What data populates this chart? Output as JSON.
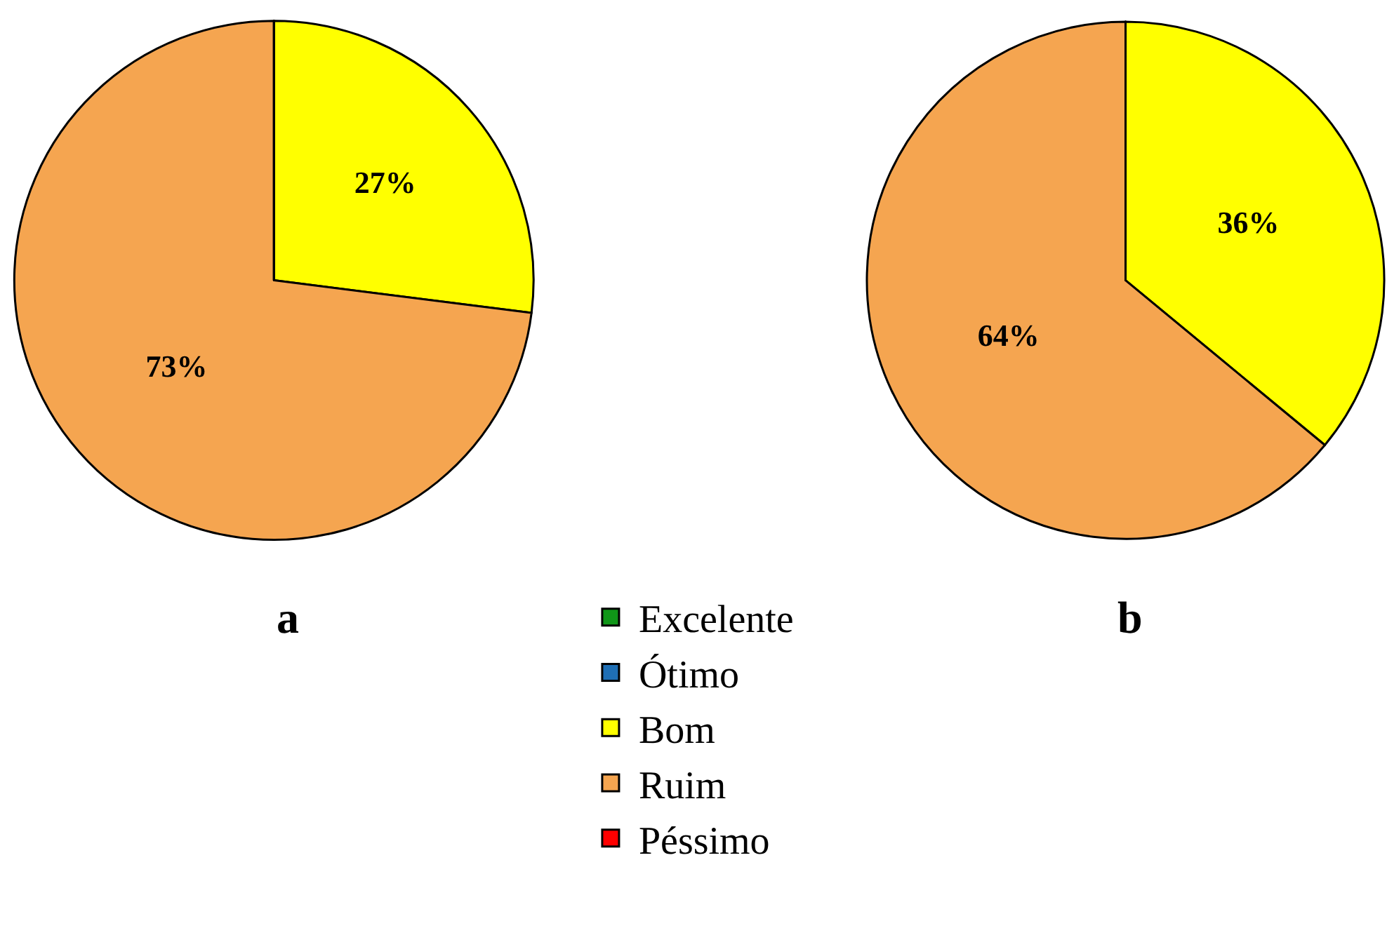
{
  "chart_data": [
    {
      "type": "pie",
      "title": "a",
      "categories": [
        "Excelente",
        "Ótimo",
        "Bom",
        "Ruim",
        "Péssimo"
      ],
      "values": [
        0,
        0,
        27,
        73,
        0
      ],
      "colors": [
        "#109618",
        "#1f6fb5",
        "#ffff00",
        "#f5a550",
        "#ff0000"
      ],
      "value_labels": [
        null,
        null,
        "27%",
        "73%",
        null
      ],
      "legend": "bottom"
    },
    {
      "type": "pie",
      "title": "b",
      "categories": [
        null,
        null,
        null,
        null,
        null
      ],
      "values": [
        0,
        0,
        36,
        64,
        0
      ],
      "colors": [
        "#109618",
        "#1f6fb5",
        "#ffff00",
        "#f5a550",
        "#ff0000"
      ],
      "value_labels": [
        null,
        null,
        "36%",
        "64%",
        null
      ]
    }
  ]
}
